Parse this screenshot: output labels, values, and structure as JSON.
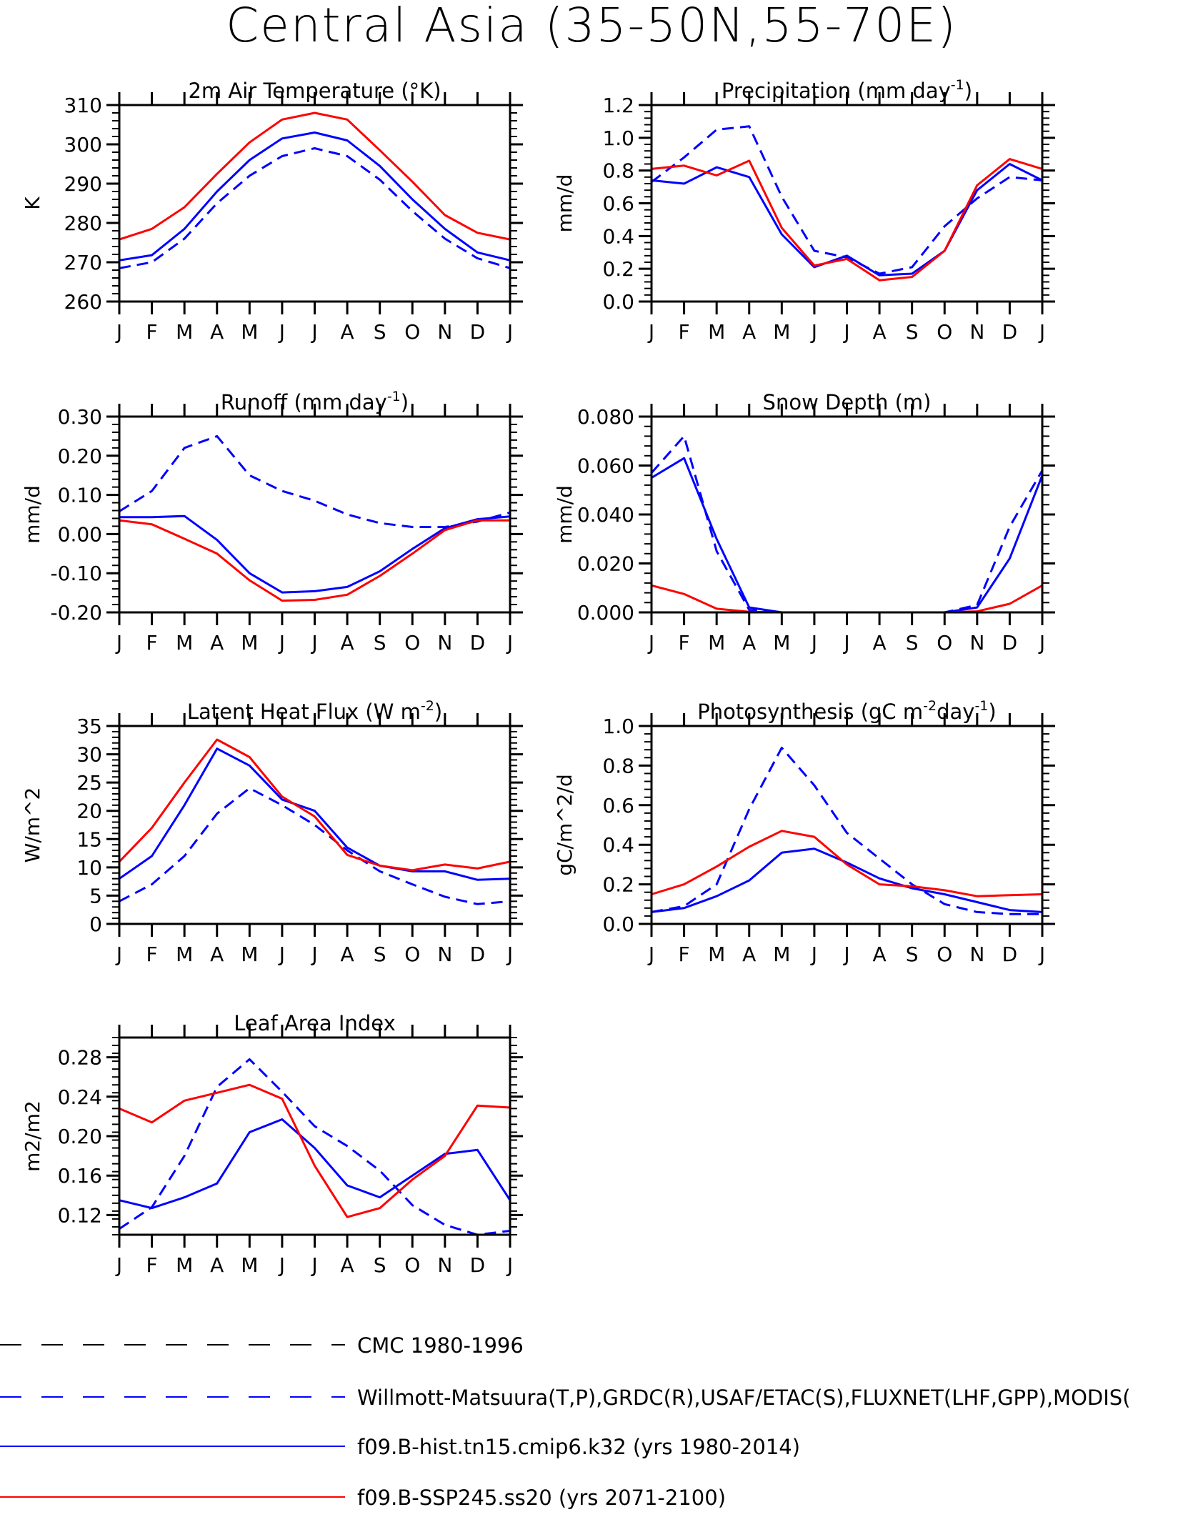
{
  "title": "Central Asia (35-50N,55-70E)",
  "months": [
    "J",
    "F",
    "M",
    "A",
    "M",
    "J",
    "J",
    "A",
    "S",
    "O",
    "N",
    "D",
    "J"
  ],
  "colors": {
    "obs_black": "#000000",
    "obs_blue": "#0000ff",
    "model_hist": "#0000ff",
    "model_future": "#ff0000"
  },
  "legend": [
    {
      "key": "cmc",
      "label": "CMC 1980-1996",
      "color": "#000000",
      "dash": "long"
    },
    {
      "key": "obs",
      "label": "Willmott-Matsuura(T,P),GRDC(R),USAF/ETAC(S),FLUXNET(LHF,GPP),MODIS(",
      "color": "#0000ff",
      "dash": "long"
    },
    {
      "key": "hist",
      "label": "f09.B-hist.tn15.cmip6.k32 (yrs 1980-2014)",
      "color": "#0000ff",
      "dash": "solid"
    },
    {
      "key": "ssp",
      "label": "f09.B-SSP245.ss20 (yrs 2071-2100)",
      "color": "#ff0000",
      "dash": "solid"
    }
  ],
  "chart_data": [
    {
      "type": "line",
      "id": "temp",
      "title": "2m Air Temperature (°K)",
      "title_sup": "",
      "ylabel": "K",
      "ylim": [
        260,
        310
      ],
      "yticks": [
        260,
        270,
        280,
        290,
        300,
        310
      ],
      "ytick_labels": [
        "260",
        "270",
        "280",
        "290",
        "300",
        "310"
      ],
      "x": [
        "J",
        "F",
        "M",
        "A",
        "M",
        "J",
        "J",
        "A",
        "S",
        "O",
        "N",
        "D",
        "J"
      ],
      "series": [
        {
          "role": "obs",
          "color": "#0000ff",
          "dash": "dash",
          "values": [
            268.5,
            270,
            276,
            285,
            292,
            297,
            299,
            297,
            291,
            283,
            276,
            271,
            268.5
          ]
        },
        {
          "role": "hist",
          "color": "#0000ff",
          "dash": "solid",
          "values": [
            270.5,
            271.8,
            278.5,
            288,
            296,
            301.5,
            303,
            301,
            294.5,
            286,
            278.5,
            272.5,
            270.5
          ]
        },
        {
          "role": "ssp",
          "color": "#ff0000",
          "dash": "solid",
          "values": [
            275.8,
            278.5,
            284,
            292.5,
            300.5,
            306.3,
            308,
            306.3,
            298.5,
            290.5,
            282,
            277.5,
            275.8
          ]
        }
      ]
    },
    {
      "type": "line",
      "id": "precip",
      "title": "Precipitation (mm day",
      "title_sup": "-1",
      "ylabel": "mm/d",
      "ylim": [
        0,
        1.2
      ],
      "yticks": [
        0,
        0.2,
        0.4,
        0.6,
        0.8,
        1.0,
        1.2
      ],
      "ytick_labels": [
        "0.0",
        "0.2",
        "0.4",
        "0.6",
        "0.8",
        "1.0",
        "1.2"
      ],
      "x": [
        "J",
        "F",
        "M",
        "A",
        "M",
        "J",
        "J",
        "A",
        "S",
        "O",
        "N",
        "D",
        "J"
      ],
      "series": [
        {
          "role": "obs",
          "color": "#0000ff",
          "dash": "dash",
          "values": [
            0.73,
            0.88,
            1.05,
            1.07,
            0.64,
            0.31,
            0.27,
            0.17,
            0.21,
            0.46,
            0.63,
            0.76,
            0.74
          ]
        },
        {
          "role": "hist",
          "color": "#0000ff",
          "dash": "solid",
          "values": [
            0.74,
            0.72,
            0.82,
            0.76,
            0.41,
            0.21,
            0.28,
            0.16,
            0.17,
            0.31,
            0.68,
            0.84,
            0.74
          ]
        },
        {
          "role": "ssp",
          "color": "#ff0000",
          "dash": "solid",
          "values": [
            0.81,
            0.83,
            0.77,
            0.86,
            0.45,
            0.22,
            0.26,
            0.13,
            0.15,
            0.31,
            0.71,
            0.87,
            0.81
          ]
        }
      ]
    },
    {
      "type": "line",
      "id": "runoff",
      "title": "Runoff (mm day",
      "title_sup": "-1",
      "ylabel": "mm/d",
      "ylim": [
        -0.2,
        0.3
      ],
      "yticks": [
        -0.2,
        -0.1,
        0,
        0.1,
        0.2,
        0.3
      ],
      "ytick_labels": [
        "-0.20",
        "-0.10",
        "0.00",
        "0.10",
        "0.20",
        "0.30"
      ],
      "x": [
        "J",
        "F",
        "M",
        "A",
        "M",
        "J",
        "J",
        "A",
        "S",
        "O",
        "N",
        "D",
        "J"
      ],
      "series": [
        {
          "role": "obs",
          "color": "#0000ff",
          "dash": "dash",
          "values": [
            0.058,
            0.11,
            0.22,
            0.25,
            0.15,
            0.11,
            0.085,
            0.05,
            0.028,
            0.018,
            0.018,
            0.032,
            0.055
          ]
        },
        {
          "role": "hist",
          "color": "#0000ff",
          "dash": "solid",
          "values": [
            0.043,
            0.043,
            0.046,
            -0.015,
            -0.1,
            -0.149,
            -0.146,
            -0.135,
            -0.095,
            -0.038,
            0.015,
            0.038,
            0.045
          ]
        },
        {
          "role": "ssp",
          "color": "#ff0000",
          "dash": "solid",
          "values": [
            0.035,
            0.025,
            -0.012,
            -0.05,
            -0.118,
            -0.17,
            -0.168,
            -0.155,
            -0.107,
            -0.05,
            0.01,
            0.035,
            0.035
          ]
        }
      ]
    },
    {
      "type": "line",
      "id": "snow",
      "title": "Snow Depth (m)",
      "title_sup": "",
      "ylabel": "mm/d",
      "ylim": [
        0,
        0.08
      ],
      "yticks": [
        0,
        0.02,
        0.04,
        0.06,
        0.08
      ],
      "ytick_labels": [
        "0.000",
        "0.020",
        "0.040",
        "0.060",
        "0.080"
      ],
      "x": [
        "J",
        "F",
        "M",
        "A",
        "M",
        "J",
        "J",
        "A",
        "S",
        "O",
        "N",
        "D",
        "J"
      ],
      "series": [
        {
          "role": "cmc",
          "color": "#000000",
          "dash": "dash",
          "values": [
            0,
            0,
            0,
            0,
            0,
            0,
            0,
            0,
            0,
            0,
            0,
            0,
            0
          ]
        },
        {
          "role": "obs",
          "color": "#0000ff",
          "dash": "dash",
          "values": [
            0.057,
            0.072,
            0.025,
            0.001,
            0,
            0,
            0,
            0,
            0,
            0,
            0.003,
            0.035,
            0.058
          ]
        },
        {
          "role": "hist",
          "color": "#0000ff",
          "dash": "solid",
          "values": [
            0.055,
            0.063,
            0.03,
            0.002,
            0,
            0,
            0,
            0,
            0,
            0,
            0.002,
            0.022,
            0.056
          ]
        },
        {
          "role": "ssp",
          "color": "#ff0000",
          "dash": "solid",
          "values": [
            0.011,
            0.0075,
            0.0015,
            0.0002,
            0,
            0,
            0,
            0,
            0,
            0,
            0.0004,
            0.0035,
            0.011
          ]
        }
      ]
    },
    {
      "type": "line",
      "id": "lhf",
      "title": "Latent Heat Flux (W m",
      "title_sup": "-2",
      "ylabel": "W/m^2",
      "ylim": [
        0,
        35
      ],
      "yticks": [
        0,
        5,
        10,
        15,
        20,
        25,
        30,
        35
      ],
      "ytick_labels": [
        "0",
        "5",
        "10",
        "15",
        "20",
        "25",
        "30",
        "35"
      ],
      "x": [
        "J",
        "F",
        "M",
        "A",
        "M",
        "J",
        "J",
        "A",
        "S",
        "O",
        "N",
        "D",
        "J"
      ],
      "series": [
        {
          "role": "obs",
          "color": "#0000ff",
          "dash": "dash",
          "values": [
            4,
            7,
            12,
            19.5,
            24,
            21,
            17.5,
            13,
            9.3,
            7,
            4.8,
            3.5,
            4
          ]
        },
        {
          "role": "hist",
          "color": "#0000ff",
          "dash": "solid",
          "values": [
            8,
            12,
            21,
            31,
            28,
            22,
            20,
            13.5,
            10.3,
            9.3,
            9.3,
            7.8,
            8
          ]
        },
        {
          "role": "ssp",
          "color": "#ff0000",
          "dash": "solid",
          "values": [
            11,
            17,
            25,
            32.6,
            29.5,
            22.5,
            19,
            12.2,
            10.3,
            9.5,
            10.5,
            9.8,
            11
          ]
        }
      ]
    },
    {
      "type": "line",
      "id": "gpp",
      "title": "Photosynthesis (gC m",
      "title_sup": "-2",
      "title_tail": "day",
      "title_sup2": "-1",
      "ylabel": "gC/m^2/d",
      "ylim": [
        0,
        1.0
      ],
      "yticks": [
        0,
        0.2,
        0.4,
        0.6,
        0.8,
        1.0
      ],
      "ytick_labels": [
        "0.0",
        "0.2",
        "0.4",
        "0.6",
        "0.8",
        "1.0"
      ],
      "x": [
        "J",
        "F",
        "M",
        "A",
        "M",
        "J",
        "J",
        "A",
        "S",
        "O",
        "N",
        "D",
        "J"
      ],
      "series": [
        {
          "role": "obs",
          "color": "#0000ff",
          "dash": "dash",
          "values": [
            0.06,
            0.09,
            0.2,
            0.58,
            0.89,
            0.7,
            0.46,
            0.33,
            0.2,
            0.1,
            0.06,
            0.05,
            0.05
          ]
        },
        {
          "role": "hist",
          "color": "#0000ff",
          "dash": "solid",
          "values": [
            0.06,
            0.08,
            0.14,
            0.22,
            0.36,
            0.38,
            0.31,
            0.23,
            0.18,
            0.15,
            0.11,
            0.07,
            0.06
          ]
        },
        {
          "role": "ssp",
          "color": "#ff0000",
          "dash": "solid",
          "values": [
            0.15,
            0.2,
            0.29,
            0.39,
            0.47,
            0.44,
            0.3,
            0.2,
            0.19,
            0.17,
            0.14,
            0.145,
            0.15
          ]
        }
      ]
    },
    {
      "type": "line",
      "id": "lai",
      "title": "Leaf Area Index",
      "title_sup": "",
      "ylabel": "m2/m2",
      "ylim": [
        0.1,
        0.3
      ],
      "yticks": [
        0.12,
        0.16,
        0.2,
        0.24,
        0.28
      ],
      "ytick_labels": [
        "0.12",
        "0.16",
        "0.20",
        "0.24",
        "0.28"
      ],
      "x": [
        "J",
        "F",
        "M",
        "A",
        "M",
        "J",
        "J",
        "A",
        "S",
        "O",
        "N",
        "D",
        "J"
      ],
      "series": [
        {
          "role": "obs",
          "color": "#0000ff",
          "dash": "dash",
          "values": [
            0.106,
            0.128,
            0.18,
            0.25,
            0.278,
            0.245,
            0.21,
            0.19,
            0.165,
            0.13,
            0.11,
            0.1,
            0.104
          ]
        },
        {
          "role": "hist",
          "color": "#0000ff",
          "dash": "solid",
          "values": [
            0.135,
            0.127,
            0.138,
            0.152,
            0.204,
            0.217,
            0.188,
            0.15,
            0.138,
            0.16,
            0.182,
            0.186,
            0.135
          ]
        },
        {
          "role": "ssp",
          "color": "#ff0000",
          "dash": "solid",
          "values": [
            0.228,
            0.214,
            0.236,
            0.244,
            0.252,
            0.238,
            0.17,
            0.118,
            0.127,
            0.156,
            0.18,
            0.231,
            0.229
          ]
        }
      ]
    }
  ]
}
